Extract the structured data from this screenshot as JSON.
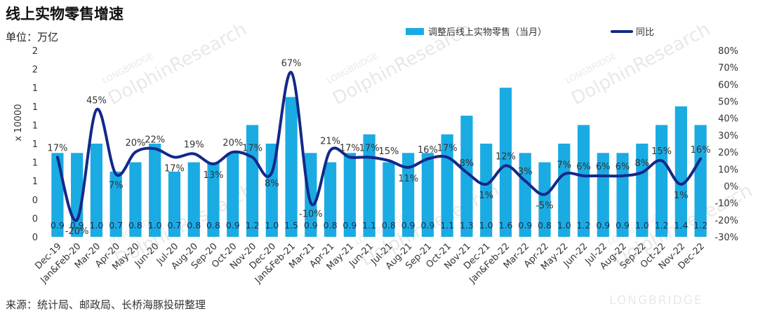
{
  "header": {
    "title": "线上实物零售增速",
    "unit_label": "单位：万亿"
  },
  "footer": {
    "source": "来源：统计局、邮政局、长桥海豚投研整理"
  },
  "watermark": {
    "text": "DolphinResearch",
    "sub": "LONGBRIDGE",
    "corner": "LONGBRIDGE"
  },
  "colors": {
    "bar": "#1AABE3",
    "line": "#12288A"
  },
  "chart_data": {
    "type": "bar",
    "categories": [
      "Dec-19",
      "Jan&Feb-20",
      "Mar-20",
      "Apr-20",
      "May-20",
      "Jun-20",
      "Jul-20",
      "Aug-20",
      "Sep-20",
      "Oct-20",
      "Nov-20",
      "Dec-20",
      "Jan&Feb-21",
      "Mar-21",
      "Apr-21",
      "May-21",
      "Jun-21",
      "Jul-21",
      "Aug-21",
      "Sep-21",
      "Oct-21",
      "Nov-21",
      "Dec-21",
      "Jan&Feb-22",
      "Mar-22",
      "Apr-22",
      "May-22",
      "Jun-22",
      "Jul-22",
      "Aug-22",
      "Sep-22",
      "Oct-22",
      "Nov-22",
      "Dec-22"
    ],
    "series": [
      {
        "name": "调整后线上实物零售（当月）",
        "type": "bar",
        "axis": "left",
        "values": [
          0.9,
          0.9,
          1.0,
          0.7,
          0.8,
          1.0,
          0.7,
          0.8,
          0.8,
          0.9,
          1.2,
          1.0,
          1.5,
          0.9,
          0.8,
          0.9,
          1.1,
          0.8,
          0.9,
          0.9,
          1.1,
          1.3,
          1.0,
          1.6,
          0.9,
          0.8,
          1.0,
          1.2,
          0.9,
          0.9,
          1.0,
          1.2,
          1.4,
          1.2
        ],
        "labels": [
          "0.9",
          "0.9",
          "1.0",
          "0.7",
          "0.8",
          "1.0",
          "0.7",
          "0.8",
          "0.8",
          "0.9",
          "1.2",
          "1.0",
          "1.5",
          "0.9",
          "0.8",
          "0.9",
          "1.1",
          "0.8",
          "0.9",
          "0.9",
          "1.1",
          "1.3",
          "1.0",
          "1.6",
          "0.9",
          "0.8",
          "1.0",
          "1.2",
          "0.9",
          "0.9",
          "1.0",
          "1.2",
          "1.4",
          "1.2"
        ]
      },
      {
        "name": "同比",
        "type": "line",
        "axis": "right",
        "values": [
          17,
          -20,
          45,
          7,
          20,
          22,
          17,
          19,
          13,
          20,
          17,
          8,
          67,
          -10,
          21,
          17,
          17,
          15,
          11,
          16,
          17,
          8,
          1,
          12,
          3,
          -5,
          7,
          6,
          6,
          6,
          8,
          15,
          1,
          16
        ],
        "labels": [
          "17%",
          "-20%",
          "45%",
          "7%",
          "20%",
          "22%",
          "17%",
          "19%",
          "13%",
          "20%",
          "17%",
          "8%",
          "67%",
          "-10%",
          "21%",
          "17%",
          "17%",
          "15%",
          "11%",
          "16%",
          "17%",
          "8%",
          "1%",
          "12%",
          "3%",
          "-5%",
          "7%",
          "6%",
          "6%",
          "6%",
          "8%",
          "15%",
          "1%",
          "16%"
        ]
      }
    ],
    "y_left": {
      "label": "x 10000",
      "ylim": [
        0,
        2
      ],
      "tick_labels": [
        "0",
        "0",
        "0",
        "1",
        "1",
        "1",
        "1",
        "1",
        "1",
        "2",
        "2"
      ]
    },
    "y_right": {
      "ylim": [
        -30,
        80
      ],
      "tick_labels": [
        "-30%",
        "-20%",
        "-10%",
        "0%",
        "10%",
        "20%",
        "30%",
        "40%",
        "50%",
        "60%",
        "70%",
        "80%"
      ]
    },
    "legend": {
      "position": "top",
      "items": [
        "调整后线上实物零售（当月）",
        "同比"
      ]
    },
    "grid": false
  }
}
